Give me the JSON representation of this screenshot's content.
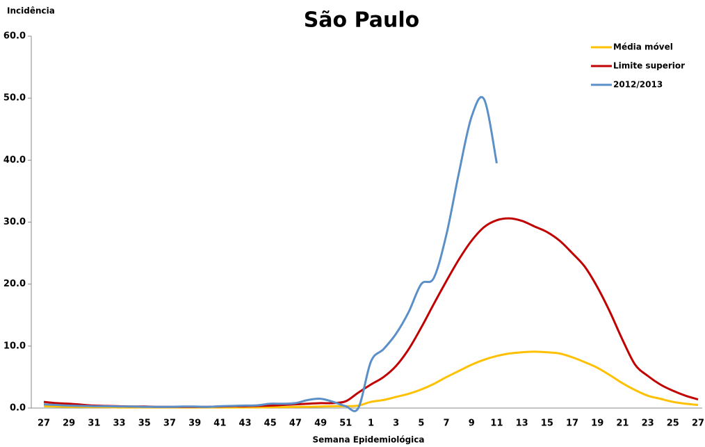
{
  "chart_data": {
    "type": "line",
    "title": "São Paulo",
    "y_label": "Incidência",
    "x_label": "Semana Epidemiológica",
    "categories": [
      "27",
      null,
      "29",
      null,
      "31",
      null,
      "33",
      null,
      "35",
      null,
      "37",
      null,
      "39",
      null,
      "41",
      null,
      "43",
      null,
      "45",
      null,
      "47",
      null,
      "49",
      null,
      "51",
      null,
      "1",
      null,
      "3",
      null,
      "5",
      null,
      "7",
      null,
      "9",
      null,
      "11",
      null,
      "13",
      null,
      "15",
      null,
      "17",
      null,
      "19",
      null,
      "21",
      null,
      "23",
      null,
      "25",
      null,
      "27"
    ],
    "series": [
      {
        "name": "Média móvel",
        "color": "#ffc000",
        "values": [
          0.3,
          0.25,
          0.2,
          0.2,
          0.15,
          0.15,
          0.1,
          0.1,
          0.1,
          0.1,
          0.1,
          0.1,
          0.1,
          0.1,
          0.1,
          0.1,
          0.1,
          0.1,
          0.15,
          0.15,
          0.2,
          0.2,
          0.25,
          0.3,
          0.3,
          0.4,
          1.0,
          1.3,
          1.8,
          2.3,
          3.0,
          3.9,
          5.0,
          6.0,
          7.0,
          7.8,
          8.4,
          8.8,
          9.0,
          9.1,
          9.0,
          8.8,
          8.2,
          7.4,
          6.5,
          5.3,
          4.0,
          2.9,
          2.0,
          1.5,
          1.0,
          0.7,
          0.5
        ]
      },
      {
        "name": "Limite superior",
        "color": "#c00000",
        "values": [
          1.0,
          0.8,
          0.7,
          0.55,
          0.4,
          0.35,
          0.3,
          0.25,
          0.25,
          0.2,
          0.2,
          0.2,
          0.2,
          0.2,
          0.25,
          0.3,
          0.3,
          0.35,
          0.4,
          0.5,
          0.6,
          0.7,
          0.8,
          0.8,
          1.1,
          2.5,
          3.8,
          5.0,
          6.8,
          9.5,
          13.0,
          16.8,
          20.5,
          24.0,
          27.0,
          29.2,
          30.3,
          30.6,
          30.2,
          29.3,
          28.4,
          27.0,
          25.0,
          22.8,
          19.5,
          15.5,
          11.0,
          7.0,
          5.2,
          3.8,
          2.8,
          2.0,
          1.4
        ]
      },
      {
        "name": "2012/2013",
        "color": "#5b8fc7",
        "values": [
          0.6,
          0.5,
          0.4,
          0.35,
          0.3,
          0.3,
          0.25,
          0.25,
          0.2,
          0.2,
          0.2,
          0.25,
          0.25,
          0.2,
          0.3,
          0.35,
          0.4,
          0.45,
          0.7,
          0.7,
          0.8,
          1.3,
          1.5,
          1.0,
          0.3,
          0.0,
          7.5,
          9.5,
          12.0,
          15.5,
          20.0,
          21.0,
          28.0,
          38.0,
          47.0,
          49.8,
          39.5,
          null,
          null,
          null,
          null,
          null,
          null,
          null,
          null,
          null,
          null,
          null,
          null,
          null,
          null,
          null,
          null
        ]
      }
    ],
    "ylim": [
      0,
      60
    ],
    "yticks": [
      {
        "value": 0,
        "label": "0.0"
      },
      {
        "value": 10,
        "label": "10.0"
      },
      {
        "value": 20,
        "label": "20.0"
      },
      {
        "value": 30,
        "label": "30.0"
      },
      {
        "value": 40,
        "label": "40.0"
      },
      {
        "value": 50,
        "label": "50.0"
      },
      {
        "value": 60,
        "label": "60.0"
      }
    ],
    "legend": "upper right"
  }
}
